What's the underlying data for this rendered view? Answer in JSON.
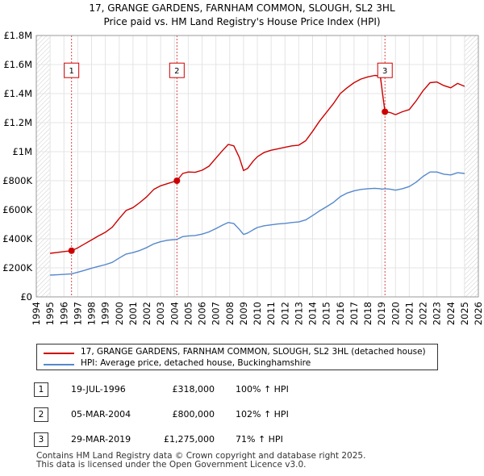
{
  "chart_data": {
    "type": "line",
    "title": "17, GRANGE GARDENS, FARNHAM COMMON, SLOUGH, SL2 3HL",
    "subtitle": "Price paid vs. HM Land Registry's House Price Index (HPI)",
    "xlabel": "",
    "ylabel": "",
    "xlim": [
      1994,
      2026
    ],
    "ylim": [
      0,
      1800000
    ],
    "x_ticks": [
      "1994",
      "1995",
      "1996",
      "1997",
      "1998",
      "1999",
      "2000",
      "2001",
      "2002",
      "2003",
      "2004",
      "2005",
      "2006",
      "2007",
      "2008",
      "2009",
      "2010",
      "2011",
      "2012",
      "2013",
      "2014",
      "2015",
      "2016",
      "2017",
      "2018",
      "2019",
      "2020",
      "2021",
      "2022",
      "2023",
      "2024",
      "2025",
      "2026"
    ],
    "y_ticks": [
      {
        "value": 0,
        "label": "£0"
      },
      {
        "value": 200000,
        "label": "£200K"
      },
      {
        "value": 400000,
        "label": "£400K"
      },
      {
        "value": 600000,
        "label": "£600K"
      },
      {
        "value": 800000,
        "label": "£800K"
      },
      {
        "value": 1000000,
        "label": "£1M"
      },
      {
        "value": 1200000,
        "label": "£1.2M"
      },
      {
        "value": 1400000,
        "label": "£1.4M"
      },
      {
        "value": 1600000,
        "label": "£1.6M"
      },
      {
        "value": 1800000,
        "label": "£1.8M"
      }
    ],
    "hatch_ranges": [
      [
        1994,
        1995.0
      ],
      [
        2025.0,
        2026
      ]
    ],
    "series": [
      {
        "name": "17, GRANGE GARDENS, FARNHAM COMMON, SLOUGH, SL2 3HL (detached house)",
        "color": "#cc0000",
        "points": [
          [
            1995.0,
            300000
          ],
          [
            1995.5,
            306000
          ],
          [
            1996.0,
            312000
          ],
          [
            1996.55,
            318000
          ],
          [
            1997.0,
            338000
          ],
          [
            1997.5,
            365000
          ],
          [
            1998.0,
            392000
          ],
          [
            1998.5,
            420000
          ],
          [
            1999.0,
            445000
          ],
          [
            1999.5,
            480000
          ],
          [
            2000.0,
            540000
          ],
          [
            2000.5,
            595000
          ],
          [
            2001.0,
            615000
          ],
          [
            2001.5,
            650000
          ],
          [
            2002.0,
            690000
          ],
          [
            2002.5,
            740000
          ],
          [
            2003.0,
            765000
          ],
          [
            2003.5,
            780000
          ],
          [
            2004.18,
            800000
          ],
          [
            2004.6,
            850000
          ],
          [
            2005.0,
            860000
          ],
          [
            2005.5,
            858000
          ],
          [
            2006.0,
            872000
          ],
          [
            2006.5,
            900000
          ],
          [
            2007.0,
            955000
          ],
          [
            2007.5,
            1010000
          ],
          [
            2007.9,
            1050000
          ],
          [
            2008.3,
            1040000
          ],
          [
            2008.7,
            960000
          ],
          [
            2009.0,
            870000
          ],
          [
            2009.3,
            885000
          ],
          [
            2009.7,
            935000
          ],
          [
            2010.0,
            965000
          ],
          [
            2010.5,
            995000
          ],
          [
            2011.0,
            1010000
          ],
          [
            2011.5,
            1020000
          ],
          [
            2012.0,
            1030000
          ],
          [
            2012.5,
            1040000
          ],
          [
            2013.0,
            1045000
          ],
          [
            2013.5,
            1075000
          ],
          [
            2014.0,
            1140000
          ],
          [
            2014.5,
            1210000
          ],
          [
            2015.0,
            1270000
          ],
          [
            2015.5,
            1330000
          ],
          [
            2016.0,
            1400000
          ],
          [
            2016.5,
            1440000
          ],
          [
            2017.0,
            1475000
          ],
          [
            2017.5,
            1500000
          ],
          [
            2018.0,
            1515000
          ],
          [
            2018.5,
            1525000
          ],
          [
            2018.9,
            1520000
          ],
          [
            2019.0,
            1450000
          ],
          [
            2019.24,
            1275000
          ],
          [
            2019.6,
            1270000
          ],
          [
            2020.0,
            1255000
          ],
          [
            2020.5,
            1275000
          ],
          [
            2021.0,
            1290000
          ],
          [
            2021.5,
            1350000
          ],
          [
            2022.0,
            1420000
          ],
          [
            2022.5,
            1475000
          ],
          [
            2023.0,
            1480000
          ],
          [
            2023.5,
            1455000
          ],
          [
            2024.0,
            1440000
          ],
          [
            2024.5,
            1470000
          ],
          [
            2025.0,
            1450000
          ]
        ]
      },
      {
        "name": "HPI: Average price, detached house, Buckinghamshire",
        "color": "#5588cc",
        "points": [
          [
            1995.0,
            150000
          ],
          [
            1995.5,
            152000
          ],
          [
            1996.0,
            155000
          ],
          [
            1996.55,
            159000
          ],
          [
            1997.0,
            170000
          ],
          [
            1997.5,
            183000
          ],
          [
            1998.0,
            198000
          ],
          [
            1998.5,
            210000
          ],
          [
            1999.0,
            222000
          ],
          [
            1999.5,
            238000
          ],
          [
            2000.0,
            268000
          ],
          [
            2000.5,
            295000
          ],
          [
            2001.0,
            305000
          ],
          [
            2001.5,
            320000
          ],
          [
            2002.0,
            340000
          ],
          [
            2002.5,
            365000
          ],
          [
            2003.0,
            380000
          ],
          [
            2003.5,
            390000
          ],
          [
            2004.18,
            396000
          ],
          [
            2004.6,
            415000
          ],
          [
            2005.0,
            420000
          ],
          [
            2005.5,
            423000
          ],
          [
            2006.0,
            432000
          ],
          [
            2006.5,
            448000
          ],
          [
            2007.0,
            470000
          ],
          [
            2007.5,
            495000
          ],
          [
            2007.9,
            512000
          ],
          [
            2008.3,
            505000
          ],
          [
            2008.7,
            465000
          ],
          [
            2009.0,
            430000
          ],
          [
            2009.3,
            440000
          ],
          [
            2009.7,
            462000
          ],
          [
            2010.0,
            478000
          ],
          [
            2010.5,
            490000
          ],
          [
            2011.0,
            496000
          ],
          [
            2011.5,
            502000
          ],
          [
            2012.0,
            506000
          ],
          [
            2012.5,
            512000
          ],
          [
            2013.0,
            516000
          ],
          [
            2013.5,
            530000
          ],
          [
            2014.0,
            560000
          ],
          [
            2014.5,
            592000
          ],
          [
            2015.0,
            620000
          ],
          [
            2015.5,
            650000
          ],
          [
            2016.0,
            690000
          ],
          [
            2016.5,
            715000
          ],
          [
            2017.0,
            730000
          ],
          [
            2017.5,
            740000
          ],
          [
            2018.0,
            745000
          ],
          [
            2018.5,
            748000
          ],
          [
            2018.9,
            745000
          ],
          [
            2019.0,
            742000
          ],
          [
            2019.24,
            745000
          ],
          [
            2019.6,
            742000
          ],
          [
            2020.0,
            735000
          ],
          [
            2020.5,
            745000
          ],
          [
            2021.0,
            760000
          ],
          [
            2021.5,
            790000
          ],
          [
            2022.0,
            830000
          ],
          [
            2022.5,
            860000
          ],
          [
            2023.0,
            860000
          ],
          [
            2023.5,
            845000
          ],
          [
            2024.0,
            840000
          ],
          [
            2024.5,
            855000
          ],
          [
            2025.0,
            850000
          ]
        ]
      }
    ],
    "sales": [
      {
        "marker": "1",
        "x": 1996.55,
        "price": 318000
      },
      {
        "marker": "2",
        "x": 2004.18,
        "price": 800000
      },
      {
        "marker": "3",
        "x": 2019.24,
        "price": 1275000
      }
    ],
    "marker_label_y": 1560000
  },
  "legend": {
    "items": [
      {
        "label": "17, GRANGE GARDENS, FARNHAM COMMON, SLOUGH, SL2 3HL (detached house)",
        "color": "#cc0000"
      },
      {
        "label": "HPI: Average price, detached house, Buckinghamshire",
        "color": "#5588cc"
      }
    ]
  },
  "sales_table": [
    {
      "num": "1",
      "date": "19-JUL-1996",
      "price": "£318,000",
      "hpi": "100% ↑ HPI"
    },
    {
      "num": "2",
      "date": "05-MAR-2004",
      "price": "£800,000",
      "hpi": "102% ↑ HPI"
    },
    {
      "num": "3",
      "date": "29-MAR-2019",
      "price": "£1,275,000",
      "hpi": "71% ↑ HPI"
    }
  ],
  "footer": {
    "line1": "Contains HM Land Registry data © Crown copyright and database right 2025.",
    "line2": "This data is licensed under the Open Government Licence v3.0."
  }
}
